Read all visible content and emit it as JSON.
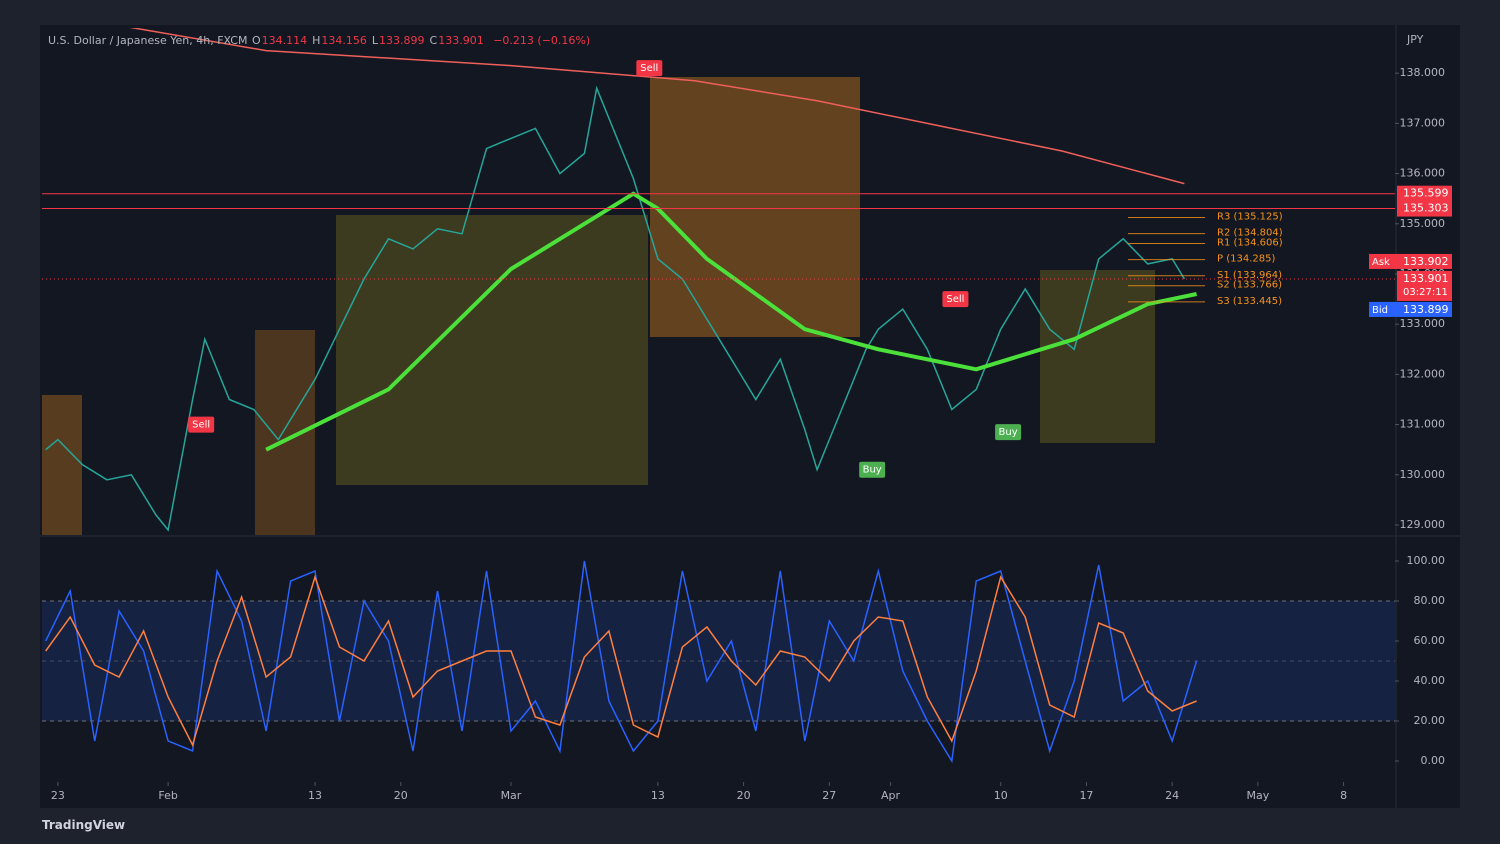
{
  "header": {
    "symbol": "U.S. Dollar / Japanese Yen, 4h, FXCM",
    "ohlc": [
      {
        "label": "O",
        "value": 134.114
      },
      {
        "label": "H",
        "value": 134.156
      },
      {
        "label": "L",
        "value": 133.899
      },
      {
        "label": "C",
        "value": 133.901
      }
    ],
    "change": "−0.213 (−0.16%)",
    "currency": "JPY"
  },
  "brand": "TradingView",
  "chart_data": [
    {
      "type": "line",
      "xlim": [
        21.7,
        132.2
      ],
      "ylim": [
        128.8,
        138.9
      ],
      "yticks": [
        {
          "value": 129,
          "label": "129.000"
        },
        {
          "value": 130,
          "label": "130.000"
        },
        {
          "value": 131,
          "label": "131.000"
        },
        {
          "value": 132,
          "label": "132.000"
        },
        {
          "value": 133,
          "label": "133.000"
        },
        {
          "value": 134,
          "label": "134.000"
        },
        {
          "value": 135,
          "label": "135.000"
        },
        {
          "value": 136,
          "label": "136.000"
        },
        {
          "value": 137,
          "label": "137.000"
        },
        {
          "value": 138,
          "label": "138.000"
        }
      ],
      "series": [
        {
          "color": "#26a69a",
          "x": [
            22,
            23,
            25,
            27,
            29,
            31,
            32,
            34,
            35,
            37,
            39,
            41,
            44,
            46,
            48,
            50,
            52,
            54,
            56,
            58,
            60,
            62,
            64,
            66,
            67,
            69,
            70,
            72,
            74,
            76,
            78,
            80,
            82,
            84,
            85,
            87,
            89,
            90,
            92,
            94,
            96,
            98,
            100,
            102,
            104,
            106,
            108,
            110,
            112,
            114,
            115
          ],
          "values": [
            130.5,
            130.7,
            130.2,
            129.9,
            130.0,
            129.2,
            128.9,
            131.5,
            132.7,
            131.5,
            131.3,
            130.7,
            131.9,
            132.9,
            133.9,
            134.7,
            134.5,
            134.9,
            134.8,
            136.5,
            136.7,
            136.9,
            136.0,
            136.4,
            137.7,
            136.5,
            135.9,
            134.3,
            133.9,
            133.1,
            132.3,
            131.5,
            132.3,
            130.9,
            130.1,
            131.3,
            132.5,
            132.9,
            133.3,
            132.5,
            131.3,
            131.7,
            132.9,
            133.7,
            132.9,
            132.5,
            134.3,
            134.7,
            134.2,
            134.3,
            133.9
          ]
        },
        {
          "color": "#f0605a",
          "x": [
            22,
            40,
            60,
            75,
            85,
            95,
            105,
            115
          ],
          "values": [
            139.2,
            138.45,
            138.15,
            137.85,
            137.45,
            136.95,
            136.45,
            135.8
          ]
        },
        {
          "color": "#4be03a",
          "x": [
            40,
            50,
            60,
            70,
            72,
            76,
            84,
            90,
            98,
            106,
            112,
            116
          ],
          "values": [
            130.5,
            131.7,
            134.1,
            135.6,
            135.3,
            134.3,
            132.9,
            132.5,
            132.1,
            132.7,
            133.4,
            133.6
          ]
        }
      ],
      "levels": [
        {
          "value": 135.599,
          "color": "#f23645"
        },
        {
          "value": 135.303,
          "color": "#f23645"
        }
      ],
      "pivots": [
        {
          "label": "R3 (135.125)",
          "value": 135.125
        },
        {
          "label": "R2 (134.804)",
          "value": 134.804
        },
        {
          "label": "R1 (134.606)",
          "value": 134.606
        },
        {
          "label": "P (134.285)",
          "value": 134.285
        },
        {
          "label": "S1 (133.964)",
          "value": 133.964
        },
        {
          "label": "S2 (133.766)",
          "value": 133.766
        },
        {
          "label": "S3 (133.445)",
          "value": 133.445
        }
      ],
      "signals": [
        {
          "label": "Sell",
          "day": 71.3,
          "price": 138.1,
          "color": "#f23645"
        },
        {
          "label": "Sell",
          "day": 34.7,
          "price": 131.0,
          "color": "#f23645"
        },
        {
          "label": "Sell",
          "day": 96.3,
          "price": 133.5,
          "color": "#f23645"
        },
        {
          "label": "Buy",
          "day": 89.5,
          "price": 130.1,
          "color": "#4caf50"
        },
        {
          "label": "Buy",
          "day": 100.6,
          "price": 130.85,
          "color": "#4caf50"
        }
      ],
      "quotes": {
        "ask": {
          "label": "Ask",
          "value": 133.902
        },
        "last": {
          "value": 133.901,
          "countdown": "03:27:11"
        },
        "bid": {
          "label": "Bid",
          "value": 133.899
        }
      }
    },
    {
      "type": "line",
      "xlim": [
        21.7,
        132.2
      ],
      "ylim": [
        -9.5,
        112
      ],
      "yticks": [
        {
          "value": 0,
          "label": "0.00"
        },
        {
          "value": 20,
          "label": "20.00"
        },
        {
          "value": 40,
          "label": "40.00"
        },
        {
          "value": 60,
          "label": "60.00"
        },
        {
          "value": 80,
          "label": "80.00"
        },
        {
          "value": 100,
          "label": "100.00"
        }
      ],
      "bands": [
        20,
        50,
        80
      ],
      "xticks": [
        {
          "value": 23,
          "label": "23"
        },
        {
          "value": 32,
          "label": "Feb"
        },
        {
          "value": 44,
          "label": "13"
        },
        {
          "value": 51,
          "label": "20"
        },
        {
          "value": 60,
          "label": "Mar"
        },
        {
          "value": 72,
          "label": "13"
        },
        {
          "value": 79,
          "label": "20"
        },
        {
          "value": 86,
          "label": "27"
        },
        {
          "value": 91,
          "label": "Apr"
        },
        {
          "value": 100,
          "label": "10"
        },
        {
          "value": 107,
          "label": "17"
        },
        {
          "value": 114,
          "label": "24"
        },
        {
          "value": 121,
          "label": "May"
        },
        {
          "value": 128,
          "label": "8"
        }
      ],
      "series": [
        {
          "color": "#2962ff",
          "x": [
            22,
            24,
            26,
            28,
            30,
            32,
            34,
            36,
            38,
            40,
            42,
            44,
            46,
            48,
            50,
            52,
            54,
            56,
            58,
            60,
            62,
            64,
            66,
            68,
            70,
            72,
            74,
            76,
            78,
            80,
            82,
            84,
            86,
            88,
            90,
            92,
            94,
            96,
            98,
            100,
            102,
            104,
            106,
            108,
            110,
            112,
            114,
            116
          ],
          "values": [
            60,
            85,
            10,
            75,
            55,
            10,
            5,
            95,
            70,
            15,
            90,
            95,
            20,
            80,
            60,
            5,
            85,
            15,
            95,
            15,
            30,
            5,
            100,
            30,
            5,
            20,
            95,
            40,
            60,
            15,
            95,
            10,
            70,
            50,
            95,
            45,
            20,
            0,
            90,
            95,
            50,
            5,
            40,
            98,
            30,
            40,
            10,
            50
          ]
        },
        {
          "color": "#ff7f3f",
          "x": [
            22,
            24,
            26,
            28,
            30,
            32,
            34,
            36,
            38,
            40,
            42,
            44,
            46,
            48,
            50,
            52,
            54,
            56,
            58,
            60,
            62,
            64,
            66,
            68,
            70,
            72,
            74,
            76,
            78,
            80,
            82,
            84,
            86,
            88,
            90,
            92,
            94,
            96,
            98,
            100,
            102,
            104,
            106,
            108,
            110,
            112,
            114,
            116
          ],
          "values": [
            55,
            72,
            48,
            42,
            65,
            32,
            8,
            50,
            82,
            42,
            52,
            92,
            57,
            50,
            70,
            32,
            45,
            50,
            55,
            55,
            22,
            18,
            52,
            65,
            18,
            12,
            57,
            67,
            50,
            38,
            55,
            52,
            40,
            60,
            72,
            70,
            32,
            10,
            45,
            92,
            72,
            28,
            22,
            69,
            64,
            35,
            25,
            30
          ]
        }
      ]
    }
  ]
}
